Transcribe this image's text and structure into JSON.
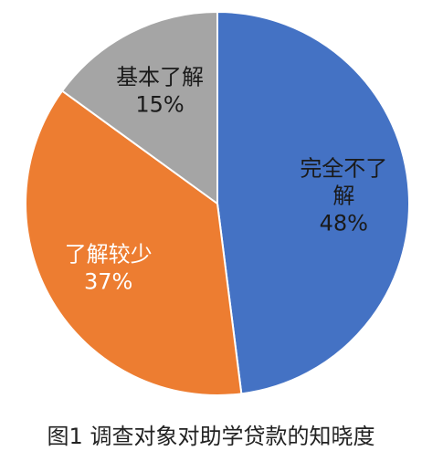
{
  "caption": "图1 调查对象对助学贷款的知晓度",
  "chart_data": {
    "type": "pie",
    "start_angle_deg": 0,
    "direction": "clockwise",
    "slices": [
      {
        "label_lines": [
          "完全不了",
          "解"
        ],
        "value_label": "48%",
        "value": 48,
        "color": "#4472C4",
        "text_color": "#1a1a1a"
      },
      {
        "label_lines": [
          "了解较少"
        ],
        "value_label": "37%",
        "value": 37,
        "color": "#ED7D31",
        "text_color": "#ffffff"
      },
      {
        "label_lines": [
          "基本了解"
        ],
        "value_label": "15%",
        "value": 15,
        "color": "#A5A5A5",
        "text_color": "#1a1a1a"
      }
    ]
  }
}
